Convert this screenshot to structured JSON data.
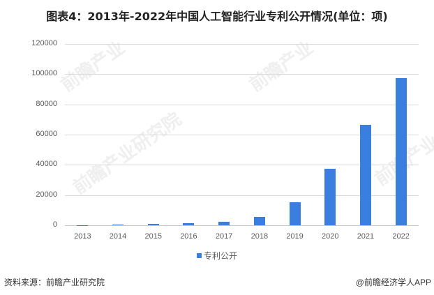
{
  "title": "图表4：2013年-2022年中国人工智能行业专利公开情况(单位：项)",
  "chart_data": {
    "type": "bar",
    "title": "图表4：2013年-2022年中国人工智能行业专利公开情况(单位：项)",
    "categories": [
      "2013",
      "2014",
      "2015",
      "2016",
      "2017",
      "2018",
      "2019",
      "2020",
      "2021",
      "2022"
    ],
    "series": [
      {
        "name": "专利公开",
        "values": [
          100,
          500,
          900,
          1200,
          2300,
          5500,
          15300,
          37400,
          66500,
          97500
        ],
        "color": "#3a7ee0"
      }
    ],
    "xlabel": "",
    "ylabel": "",
    "ylim": [
      0,
      120000
    ],
    "yticks": [
      "0",
      "20000",
      "40000",
      "60000",
      "80000",
      "100000",
      "120000"
    ],
    "grid": true,
    "legend_position": "bottom"
  },
  "legend": {
    "label": "专利公开"
  },
  "footer": {
    "source": "资料来源：前瞻产业研究院",
    "credit": "@前瞻经济学人APP"
  },
  "watermarks": [
    "前瞻产业研究院",
    "前瞻产业",
    "前瞻产业",
    "前瞻产业"
  ]
}
